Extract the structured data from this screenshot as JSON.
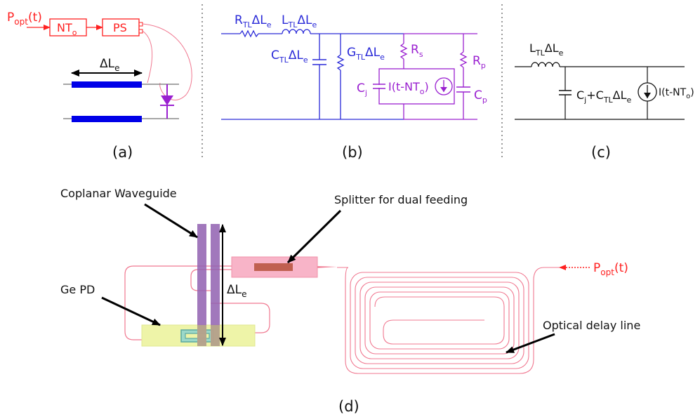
{
  "colors": {
    "red": "#ff2020",
    "blue": "#2a2ad8",
    "purple": "#9a20d0",
    "pink": "#f07890",
    "electrode": "#0000e8",
    "cpw": "#9060b0",
    "splitter_pad": "#f8b4c8",
    "splitter_core": "#c06050",
    "pd_pad": "#eef4a8",
    "separator": "#999999"
  },
  "panel_a": {
    "label": "(a)",
    "p_opt": {
      "main": "P",
      "sub": "opt",
      "rest": "(t)"
    },
    "nt_box": {
      "main": "NT",
      "sub": "o"
    },
    "ps_box": "PS",
    "delta_le": {
      "main": "ΔL",
      "sub": "e"
    }
  },
  "panel_b": {
    "label": "(b)",
    "r_tl": {
      "a": "R",
      "sub": "TL",
      "b": "ΔL",
      "sub2": "e"
    },
    "l_tl": {
      "a": "L",
      "sub": "TL",
      "b": "ΔL",
      "sub2": "e"
    },
    "c_tl": {
      "a": "C",
      "sub": "TL",
      "b": "ΔL",
      "sub2": "e"
    },
    "g_tl": {
      "a": "G",
      "sub": "TL",
      "b": "ΔL",
      "sub2": "e"
    },
    "rs": {
      "a": "R",
      "sub": "s"
    },
    "rp": {
      "a": "R",
      "sub": "p"
    },
    "cj": {
      "a": "C",
      "sub": "j"
    },
    "cp": {
      "a": "C",
      "sub": "p"
    },
    "source": {
      "a": "I(t-NT",
      "sub": "o",
      "b": ")"
    }
  },
  "panel_c": {
    "label": "(c)",
    "l_tl": {
      "a": "L",
      "sub": "TL",
      "b": "ΔL",
      "sub2": "e"
    },
    "cap": {
      "a": "C",
      "sub": "j",
      "b": "+C",
      "sub2": "TL",
      "c": "ΔL",
      "sub3": "e"
    },
    "source": {
      "a": "I(t-NT",
      "sub": "o",
      "b": ")"
    }
  },
  "panel_d": {
    "label": "(d)",
    "coplanar": "Coplanar Waveguide",
    "splitter": "Splitter for dual feeding",
    "ge_pd": "Ge PD",
    "delay": "Optical delay line",
    "delta_le": {
      "main": "ΔL",
      "sub": "e"
    },
    "p_opt": {
      "main": "P",
      "sub": "opt",
      "rest": "(t)"
    }
  }
}
